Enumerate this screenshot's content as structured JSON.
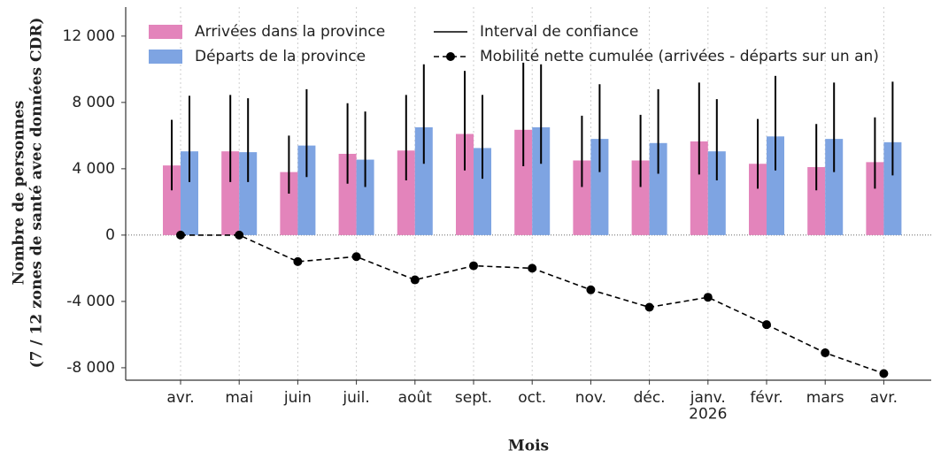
{
  "chart_data": {
    "type": "bar",
    "x_label": "Mois",
    "y_label": [
      "Nombre de personnes",
      "(7 / 12 zones de santé avec données CDR)"
    ],
    "categories": [
      "avr.",
      "mai",
      "juin",
      "juil.",
      "août",
      "sept.",
      "oct.",
      "nov.",
      "déc.",
      "janv.\n2026",
      "févr.",
      "mars",
      "avr."
    ],
    "series": [
      {
        "name": "Arrivées dans la province",
        "color": "#e384bb",
        "values": [
          4200,
          5050,
          3800,
          4900,
          5100,
          6100,
          6350,
          4500,
          4500,
          5650,
          4300,
          4100,
          4400
        ],
        "ci_low": [
          2700,
          3200,
          2500,
          3100,
          3300,
          3900,
          4150,
          2900,
          2900,
          3650,
          2800,
          2700,
          2800
        ],
        "ci_high": [
          6950,
          8450,
          6000,
          7950,
          8450,
          9900,
          10400,
          7200,
          7250,
          9200,
          7000,
          6700,
          7100
        ]
      },
      {
        "name": "Départs de la province",
        "color": "#7ea4e2",
        "values": [
          5050,
          5000,
          5400,
          4550,
          6500,
          5250,
          6500,
          5800,
          5550,
          5050,
          5950,
          5800,
          5600
        ],
        "ci_low": [
          3200,
          3200,
          3500,
          2900,
          4300,
          3400,
          4300,
          3800,
          3700,
          3300,
          3900,
          3800,
          3600
        ],
        "ci_high": [
          8400,
          8250,
          8800,
          7450,
          10300,
          8450,
          10300,
          9100,
          8800,
          8200,
          9600,
          9200,
          9250
        ]
      },
      {
        "name": "Mobilité nette cumulée (arrivées - départs sur un an)",
        "color": "#000000",
        "type": "line",
        "values": [
          0,
          0,
          -1600,
          -1300,
          -2700,
          -1850,
          -2000,
          -3300,
          -4350,
          -3750,
          -5400,
          -7100,
          -8350
        ]
      }
    ],
    "ci_legend": "Interval de confiance",
    "ylim": [
      -8750,
      13750
    ],
    "yticks": [
      {
        "value": -8000,
        "label": "-8 000"
      },
      {
        "value": -4000,
        "label": "-4 000"
      },
      0,
      {
        "value": 4000,
        "label": "4 000"
      },
      {
        "value": 8000,
        "label": "8 000"
      },
      {
        "value": 12000,
        "label": "12 000"
      }
    ],
    "grid": true
  }
}
